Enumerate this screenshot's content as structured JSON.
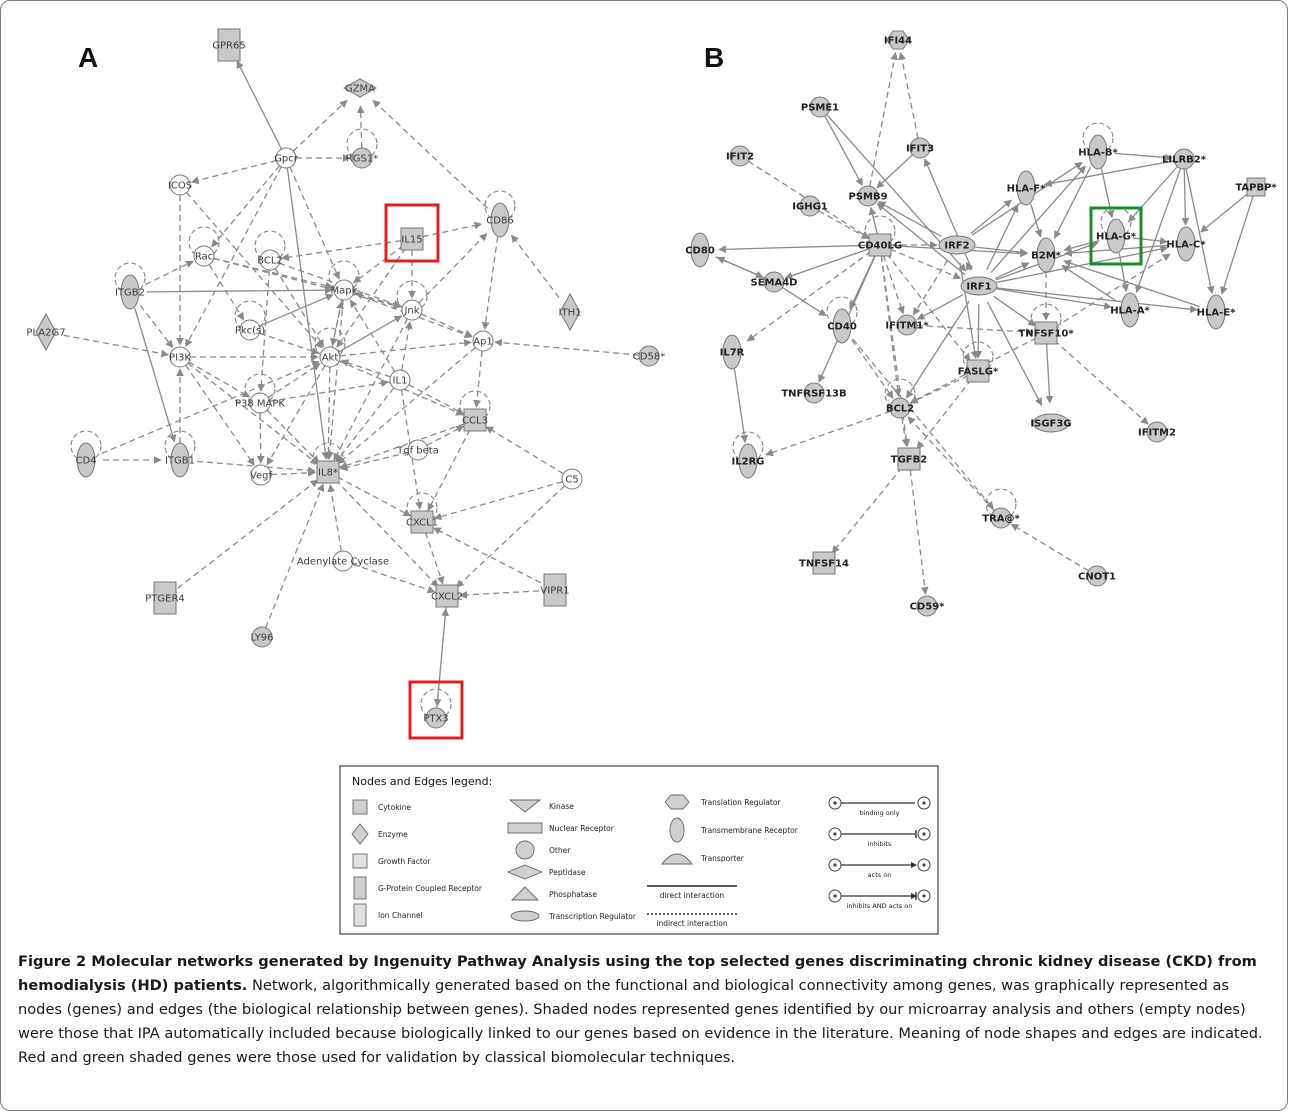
{
  "panels": {
    "a": "A",
    "b": "B"
  },
  "network_a": {
    "highlight_color": "#e02020",
    "highlighted": [
      "IL15",
      "PTX3"
    ],
    "nodes": [
      {
        "id": "GPR65",
        "label": "GPR65",
        "shape": "rect-v",
        "shaded": true
      },
      {
        "id": "GZMA",
        "label": "GZMA",
        "shape": "diamond",
        "shaded": true
      },
      {
        "id": "Gpcr",
        "label": "Gpcr",
        "shape": "circle",
        "shaded": false
      },
      {
        "id": "RGS1",
        "label": "RGS1*",
        "shape": "circle",
        "shaded": true
      },
      {
        "id": "ICOS",
        "label": "ICOS",
        "shape": "circle",
        "shaded": false
      },
      {
        "id": "CD86",
        "label": "CD86",
        "shape": "ellipse",
        "shaded": true
      },
      {
        "id": "IL15",
        "label": "IL15",
        "shape": "square",
        "shaded": true
      },
      {
        "id": "Rac",
        "label": "Rac",
        "shape": "circle",
        "shaded": false
      },
      {
        "id": "BCL2",
        "label": "BCL2",
        "shape": "circle",
        "shaded": false
      },
      {
        "id": "ITGB2",
        "label": "ITGB2",
        "shape": "ellipse",
        "shaded": true
      },
      {
        "id": "Mapk",
        "label": "Mapk",
        "shape": "circle",
        "shaded": false
      },
      {
        "id": "Jnk",
        "label": "Jnk",
        "shape": "circle",
        "shaded": false
      },
      {
        "id": "ITH1",
        "label": "ITH1",
        "shape": "diamond-v",
        "shaded": true
      },
      {
        "id": "PLA2G7",
        "label": "PLA2G7",
        "shape": "diamond-v",
        "shaded": true
      },
      {
        "id": "Pkcs",
        "label": "Pkc(s)",
        "shape": "circle",
        "shaded": false
      },
      {
        "id": "Ap1",
        "label": "Ap1",
        "shape": "circle",
        "shaded": false
      },
      {
        "id": "CD58",
        "label": "CD58*",
        "shape": "circle",
        "shaded": true
      },
      {
        "id": "PI3K",
        "label": "PI3K",
        "shape": "circle",
        "shaded": false
      },
      {
        "id": "Akt",
        "label": "Akt",
        "shape": "circle",
        "shaded": false
      },
      {
        "id": "IL1",
        "label": "IL1",
        "shape": "circle",
        "shaded": false
      },
      {
        "id": "P38",
        "label": "P38 MAPK",
        "shape": "circle",
        "shaded": false
      },
      {
        "id": "CCL3",
        "label": "CCL3",
        "shape": "square",
        "shaded": true
      },
      {
        "id": "CD4",
        "label": "CD4",
        "shape": "ellipse",
        "shaded": true
      },
      {
        "id": "ITGB1",
        "label": "ITGB1",
        "shape": "ellipse",
        "shaded": true
      },
      {
        "id": "Tgfbeta",
        "label": "Tgf beta",
        "shape": "circle",
        "shaded": false
      },
      {
        "id": "Vegf",
        "label": "Vegf",
        "shape": "circle",
        "shaded": false
      },
      {
        "id": "IL8",
        "label": "IL8*",
        "shape": "square",
        "shaded": true
      },
      {
        "id": "C5",
        "label": "C5",
        "shape": "circle",
        "shaded": false
      },
      {
        "id": "CXCL1",
        "label": "CXCL1",
        "shape": "square",
        "shaded": true
      },
      {
        "id": "AC",
        "label": "Adenylate Cyclase",
        "shape": "circle",
        "shaded": false
      },
      {
        "id": "VIPR1",
        "label": "VIPR1",
        "shape": "rect-v",
        "shaded": true
      },
      {
        "id": "PTGER4",
        "label": "PTGER4",
        "shape": "rect-v",
        "shaded": true
      },
      {
        "id": "CXCL2",
        "label": "CXCL2",
        "shape": "square",
        "shaded": true
      },
      {
        "id": "LY96",
        "label": "LY96",
        "shape": "circle",
        "shaded": true
      },
      {
        "id": "PTX3",
        "label": "PTX3",
        "shape": "circle",
        "shaded": true
      }
    ]
  },
  "network_b": {
    "highlight_color": "#1f8a2a",
    "highlighted": [
      "HLA-G"
    ],
    "nodes": [
      {
        "id": "IFI44",
        "label": "IFI44",
        "shape": "hexagon",
        "shaded": true
      },
      {
        "id": "PSME1",
        "label": "PSME1",
        "shape": "circle",
        "shaded": true
      },
      {
        "id": "IFIT3",
        "label": "IFIT3",
        "shape": "circle",
        "shaded": true
      },
      {
        "id": "HLA-B",
        "label": "HLA-B*",
        "shape": "ellipse",
        "shaded": true
      },
      {
        "id": "LILRB2",
        "label": "LILRB2*",
        "shape": "circle",
        "shaded": true
      },
      {
        "id": "IFIT2",
        "label": "IFIT2",
        "shape": "circle",
        "shaded": true
      },
      {
        "id": "PSMB9",
        "label": "PSMB9",
        "shape": "circle",
        "shaded": true
      },
      {
        "id": "HLA-F",
        "label": "HLA-F*",
        "shape": "ellipse",
        "shaded": true
      },
      {
        "id": "TAPBP",
        "label": "TAPBP*",
        "shape": "rect",
        "shaded": true
      },
      {
        "id": "IGHG1",
        "label": "IGHG1",
        "shape": "circle",
        "shaded": true
      },
      {
        "id": "IRF2",
        "label": "IRF2",
        "shape": "ellipse-h",
        "shaded": true
      },
      {
        "id": "HLA-G",
        "label": "HLA-G*",
        "shape": "ellipse",
        "shaded": true
      },
      {
        "id": "CD80",
        "label": "CD80",
        "shape": "ellipse",
        "shaded": true
      },
      {
        "id": "CD40LG",
        "label": "CD40LG",
        "shape": "square",
        "shaded": true
      },
      {
        "id": "B2M",
        "label": "B2M*",
        "shape": "ellipse",
        "shaded": true
      },
      {
        "id": "HLA-C",
        "label": "HLA-C*",
        "shape": "ellipse",
        "shaded": true
      },
      {
        "id": "SEMA4D",
        "label": "SEMA4D",
        "shape": "circle",
        "shaded": true
      },
      {
        "id": "IRF1",
        "label": "IRF1",
        "shape": "ellipse-h",
        "shaded": true
      },
      {
        "id": "HLA-A",
        "label": "HLA-A*",
        "shape": "ellipse",
        "shaded": true
      },
      {
        "id": "HLA-E",
        "label": "HLA-E*",
        "shape": "ellipse",
        "shaded": true
      },
      {
        "id": "CD40",
        "label": "CD40",
        "shape": "ellipse",
        "shaded": true
      },
      {
        "id": "IFITM1",
        "label": "IFITM1*",
        "shape": "circle",
        "shaded": true
      },
      {
        "id": "TNFSF10",
        "label": "TNFSF10*",
        "shape": "square",
        "shaded": true
      },
      {
        "id": "IL7R",
        "label": "IL7R",
        "shape": "ellipse",
        "shaded": true
      },
      {
        "id": "FASLG",
        "label": "FASLG*",
        "shape": "square",
        "shaded": true
      },
      {
        "id": "TNFRSF13B",
        "label": "TNFRSF13B",
        "shape": "circle",
        "shaded": true
      },
      {
        "id": "BCL2",
        "label": "BCL2",
        "shape": "circle",
        "shaded": true
      },
      {
        "id": "ISGF3G",
        "label": "ISGF3G",
        "shape": "ellipse-h",
        "shaded": true
      },
      {
        "id": "IFITM2",
        "label": "IFITM2",
        "shape": "circle",
        "shaded": true
      },
      {
        "id": "IL2RG",
        "label": "IL2RG",
        "shape": "ellipse",
        "shaded": true
      },
      {
        "id": "TGFB2",
        "label": "TGFB2",
        "shape": "square",
        "shaded": true
      },
      {
        "id": "TRA",
        "label": "TRA@*",
        "shape": "circle",
        "shaded": true
      },
      {
        "id": "TNFSF14",
        "label": "TNFSF14",
        "shape": "square",
        "shaded": true
      },
      {
        "id": "CNOT1",
        "label": "CNOT1",
        "shape": "circle",
        "shaded": true
      },
      {
        "id": "CD59",
        "label": "CD59*",
        "shape": "circle",
        "shaded": true
      }
    ]
  },
  "legend": {
    "title": "Nodes and Edges legend:",
    "items": [
      {
        "shape": "square",
        "label": "Cytokine"
      },
      {
        "shape": "diamond-v",
        "label": "Enzyme"
      },
      {
        "shape": "square-light",
        "label": "Growth Factor"
      },
      {
        "shape": "rect-v",
        "label": "G-Protein Coupled Receptor"
      },
      {
        "shape": "rect-v-light",
        "label": "Ion Channel"
      },
      {
        "shape": "triangle-down",
        "label": "Kinase"
      },
      {
        "shape": "rect-h",
        "label": "Nuclear Receptor"
      },
      {
        "shape": "circle",
        "label": "Other"
      },
      {
        "shape": "diamond-h",
        "label": "Peptidase"
      },
      {
        "shape": "triangle-up",
        "label": "Phosphatase"
      },
      {
        "shape": "ellipse-h",
        "label": "Transcription Regulator"
      },
      {
        "shape": "hexagon",
        "label": "Translation Regulator"
      },
      {
        "shape": "ellipse-v",
        "label": "Transmembrane Receptor"
      },
      {
        "shape": "dome",
        "label": "Transporter"
      },
      {
        "shape": "line-solid",
        "label": "direct interaction"
      },
      {
        "shape": "line-dotted",
        "label": "indirect interaction"
      }
    ],
    "edges": [
      {
        "type": "binding",
        "label": "binding only"
      },
      {
        "type": "inhibits",
        "label": "inhibits"
      },
      {
        "type": "acts",
        "label": "acts on"
      },
      {
        "type": "both",
        "label": "inhibits AND acts on"
      }
    ]
  },
  "caption": {
    "title": "Figure 2 Molecular networks generated by Ingenuity Pathway Analysis using the top selected genes discriminating chronic kidney disease (CKD) from hemodialysis (HD) patients.",
    "body": " Network, algorithmically generated based on the functional and biological connectivity among genes, was graphically represented as nodes (genes) and edges (the biological relationship between genes). Shaded nodes represented genes identified by our microarray analysis and others (empty nodes) were those that IPA automatically included because biologically linked to our genes based on evidence in the literature. Meaning of node shapes and edges are indicated. Red and green shaded genes were those used for validation by classical biomolecular techniques."
  }
}
